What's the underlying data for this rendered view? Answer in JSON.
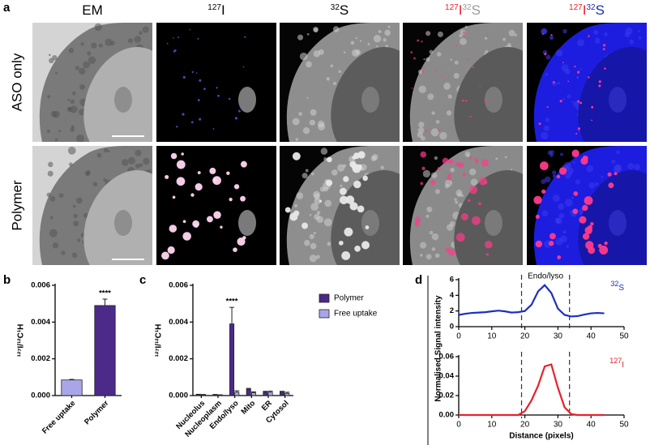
{
  "panels": [
    "a",
    "b",
    "c",
    "d"
  ],
  "figure_a": {
    "columns": [
      {
        "parts": [
          "EM"
        ],
        "colors": [
          "#000000"
        ]
      },
      {
        "parts": [
          "127",
          "I"
        ],
        "colors": [
          "#000000"
        ]
      },
      {
        "parts": [
          "32",
          "S"
        ],
        "colors": [
          "#000000"
        ]
      },
      {
        "parts": [
          "127",
          "I",
          "32",
          "S"
        ],
        "colors": [
          "#e8212b",
          "#9a9a9a"
        ]
      },
      {
        "parts": [
          "127",
          "I",
          "32",
          "S"
        ],
        "colors": [
          "#e8212b",
          "#1c2fa8"
        ]
      }
    ],
    "rows": [
      "ASO only",
      "Polymer"
    ]
  },
  "chart_data": [
    {
      "type": "bar",
      "ylabel": "¹²⁷I/¹²C¹H",
      "categories": [
        "Free uptake",
        "Polymer"
      ],
      "values": [
        0.00085,
        0.0049
      ],
      "errors": [
        3e-05,
        0.00035
      ],
      "colors": [
        "#a9a6e8",
        "#4b2a8a"
      ],
      "ylim": [
        0,
        0.006
      ],
      "yticks": [
        {
          "value": 0,
          "label": "0.000"
        },
        {
          "value": 0.002,
          "label": "0.002"
        },
        {
          "value": 0.004,
          "label": "0.004"
        },
        {
          "value": 0.006,
          "label": "0.006"
        }
      ],
      "annotations": [
        {
          "text": "****",
          "category": "Polymer"
        }
      ]
    },
    {
      "type": "bar",
      "ylabel": "¹²⁷I/¹²C¹H",
      "categories": [
        "Nucleolus",
        "Nucleoplasm",
        "Endo/lyso",
        "Mito",
        "ER",
        "Cytosol"
      ],
      "series": [
        {
          "name": "Polymer",
          "color": "#4b2a8a",
          "values": [
            5e-05,
            4e-05,
            0.0039,
            0.00035,
            0.0002,
            0.0002
          ],
          "errors": [
            2e-05,
            2e-05,
            0.0009,
            4e-05,
            3e-05,
            3e-05
          ]
        },
        {
          "name": "Free uptake",
          "color": "#a9a6e8",
          "values": [
            4e-05,
            3e-05,
            0.00018,
            0.00015,
            0.00018,
            0.00012
          ],
          "errors": [
            2e-05,
            1e-05,
            8e-05,
            5e-05,
            6e-05,
            6e-05
          ]
        }
      ],
      "ylim": [
        0,
        0.006
      ],
      "yticks": [
        {
          "value": 0,
          "label": "0.000"
        },
        {
          "value": 0.002,
          "label": "0.002"
        },
        {
          "value": 0.004,
          "label": "0.004"
        },
        {
          "value": 0.006,
          "label": "0.006"
        }
      ],
      "legend": "top-right",
      "annotations": [
        {
          "text": "****",
          "category": "Endo/lyso",
          "series": "Polymer"
        }
      ]
    },
    {
      "type": "line",
      "ylabel": "Normalised Signal intensity",
      "annotation": "Endo/lyso",
      "label": {
        "sup": "32",
        "text": "S"
      },
      "x": [
        0,
        2,
        4,
        6,
        8,
        10,
        12,
        14,
        16,
        18,
        20,
        22,
        24,
        26,
        28,
        30,
        32,
        34,
        36,
        38,
        40,
        42,
        44
      ],
      "series": [
        {
          "color": "#1c2fc0",
          "values": [
            1.5,
            1.65,
            1.75,
            1.8,
            1.85,
            1.95,
            2.05,
            1.95,
            1.8,
            1.85,
            2.0,
            2.8,
            4.5,
            5.3,
            4.3,
            2.3,
            1.5,
            1.3,
            1.35,
            1.55,
            1.7,
            1.75,
            1.7
          ]
        }
      ],
      "vlines": [
        19,
        33.5
      ],
      "xlim": [
        0,
        50
      ],
      "xticks": [
        0,
        10,
        20,
        30,
        40,
        50
      ],
      "ylim": [
        0,
        6
      ],
      "yticks": [
        0,
        2,
        4,
        6
      ]
    },
    {
      "type": "line",
      "xlabel": "Distance (pixels)",
      "label": {
        "sup": "127",
        "text": "I"
      },
      "x": [
        0,
        2,
        4,
        6,
        8,
        10,
        12,
        14,
        16,
        18,
        20,
        22,
        24,
        26,
        28,
        30,
        32,
        34,
        36,
        38,
        40,
        42,
        44
      ],
      "series": [
        {
          "color": "#e8212b",
          "values": [
            0,
            0,
            0,
            0,
            0,
            0,
            0,
            0,
            0,
            0,
            0.004,
            0.015,
            0.03,
            0.05,
            0.052,
            0.028,
            0.008,
            0.001,
            0,
            0,
            0,
            0,
            0
          ]
        }
      ],
      "vlines": [
        19,
        33.5
      ],
      "xlim": [
        0,
        50
      ],
      "xticks": [
        0,
        10,
        20,
        30,
        40,
        50
      ],
      "ylim": [
        0,
        0.06
      ],
      "yticks": [
        {
          "value": 0,
          "label": "0.00"
        },
        {
          "value": 0.02,
          "label": "0.02"
        },
        {
          "value": 0.04,
          "label": "0.04"
        },
        {
          "value": 0.06,
          "label": "0.06"
        }
      ]
    }
  ]
}
